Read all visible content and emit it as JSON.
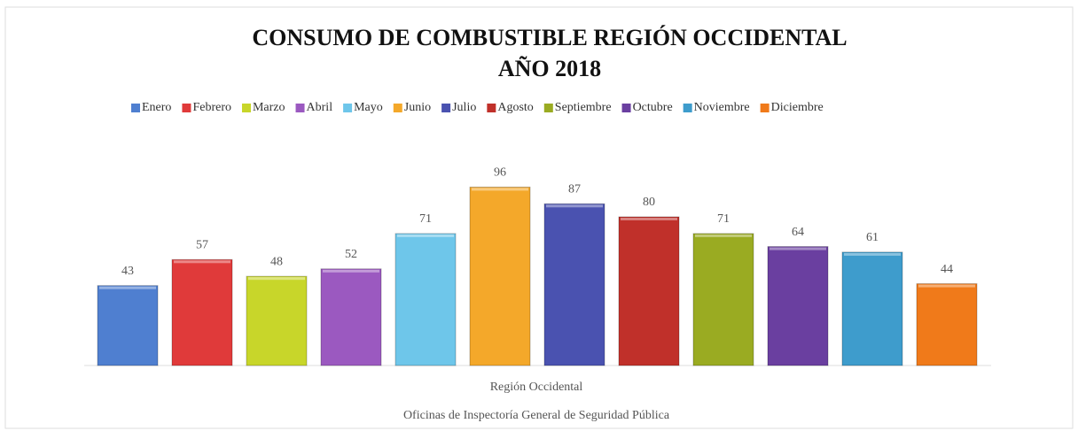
{
  "chart_data": {
    "type": "bar",
    "title": "CONSUMO DE COMBUSTIBLE REGIÓN OCCIDENTAL",
    "subtitle": "AÑO 2018",
    "categories": [
      "Región Occidental"
    ],
    "footer": "Oficinas de Inspectoría General de Seguridad Pública",
    "legend": "top",
    "series": [
      {
        "name": "Enero",
        "color": "#4f7fd0",
        "values": [
          43
        ]
      },
      {
        "name": "Febrero",
        "color": "#e03a3a",
        "values": [
          57
        ]
      },
      {
        "name": "Marzo",
        "color": "#c8d62a",
        "values": [
          48
        ]
      },
      {
        "name": "Abril",
        "color": "#9b59c0",
        "values": [
          52
        ]
      },
      {
        "name": "Mayo",
        "color": "#6ec6ea",
        "values": [
          71
        ]
      },
      {
        "name": "Junio",
        "color": "#f4a82a",
        "values": [
          96
        ]
      },
      {
        "name": "Julio",
        "color": "#4a52b0",
        "values": [
          87
        ]
      },
      {
        "name": "Agosto",
        "color": "#c0302a",
        "values": [
          80
        ]
      },
      {
        "name": "Septiembre",
        "color": "#9aab22",
        "values": [
          71
        ]
      },
      {
        "name": "Octubre",
        "color": "#6a3fa0",
        "values": [
          64
        ]
      },
      {
        "name": "Noviembre",
        "color": "#3e9ccc",
        "values": [
          61
        ]
      },
      {
        "name": "Diciembre",
        "color": "#f07a1a",
        "values": [
          44
        ]
      }
    ]
  }
}
